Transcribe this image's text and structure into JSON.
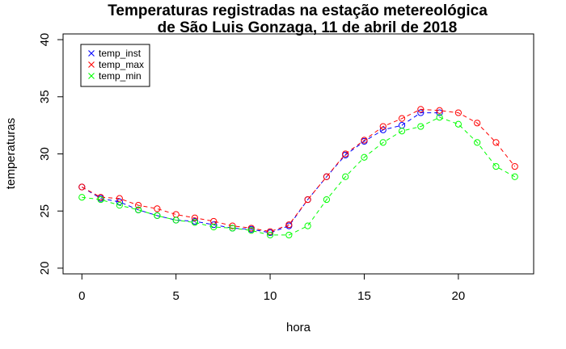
{
  "chart_data": {
    "type": "line",
    "title": "Temperaturas registradas na estação metereológica",
    "subtitle": "de São Luis Gonzaga, 11 de abril de 2018",
    "xlabel": "hora",
    "ylabel": "temperaturas",
    "xlim": [
      -1,
      24
    ],
    "ylim": [
      19.5,
      40.5
    ],
    "x_ticks": [
      0,
      5,
      10,
      15,
      20
    ],
    "y_ticks": [
      20,
      25,
      30,
      35,
      40
    ],
    "grid": false,
    "legend_position": "top-left",
    "x": [
      0,
      1,
      2,
      3,
      4,
      5,
      6,
      7,
      8,
      9,
      10,
      11,
      12,
      13,
      14,
      15,
      16,
      17,
      18,
      19,
      20,
      21,
      22,
      23
    ],
    "series": [
      {
        "name": "temp_inst",
        "color": "#0000ff",
        "marker": "circle",
        "x": [
          0,
          1,
          2,
          3,
          4,
          5,
          6,
          7,
          8,
          9,
          10,
          11,
          12,
          13,
          14,
          15,
          16,
          17,
          18,
          19
        ],
        "values": [
          27.1,
          26.1,
          25.8,
          25.1,
          24.6,
          24.2,
          24.1,
          23.8,
          23.5,
          23.4,
          23.1,
          23.7,
          26.0,
          28.0,
          29.9,
          31.1,
          32.1,
          32.5,
          33.6,
          33.6
        ]
      },
      {
        "name": "temp_max",
        "color": "#ff0000",
        "marker": "circle",
        "x": [
          0,
          1,
          2,
          3,
          4,
          5,
          6,
          7,
          8,
          9,
          10,
          11,
          12,
          13,
          14,
          15,
          16,
          17,
          18,
          19,
          20,
          21,
          22,
          23
        ],
        "values": [
          27.1,
          26.2,
          26.1,
          25.5,
          25.2,
          24.7,
          24.4,
          24.1,
          23.7,
          23.5,
          23.2,
          23.8,
          26.0,
          28.0,
          30.0,
          31.2,
          32.4,
          33.1,
          33.9,
          33.8,
          33.6,
          32.7,
          31.0,
          28.9
        ]
      },
      {
        "name": "temp_min",
        "color": "#00ff00",
        "marker": "circle",
        "x": [
          0,
          1,
          2,
          3,
          4,
          5,
          6,
          7,
          8,
          9,
          10,
          11,
          12,
          13,
          14,
          15,
          16,
          17,
          18,
          19,
          20,
          21,
          22,
          23
        ],
        "values": [
          26.2,
          26.0,
          25.5,
          25.1,
          24.6,
          24.2,
          24.0,
          23.6,
          23.5,
          23.3,
          22.9,
          22.9,
          23.7,
          26.0,
          28.0,
          29.7,
          31.0,
          32.0,
          32.4,
          33.2,
          32.6,
          31.0,
          28.9,
          28.0
        ]
      }
    ]
  }
}
